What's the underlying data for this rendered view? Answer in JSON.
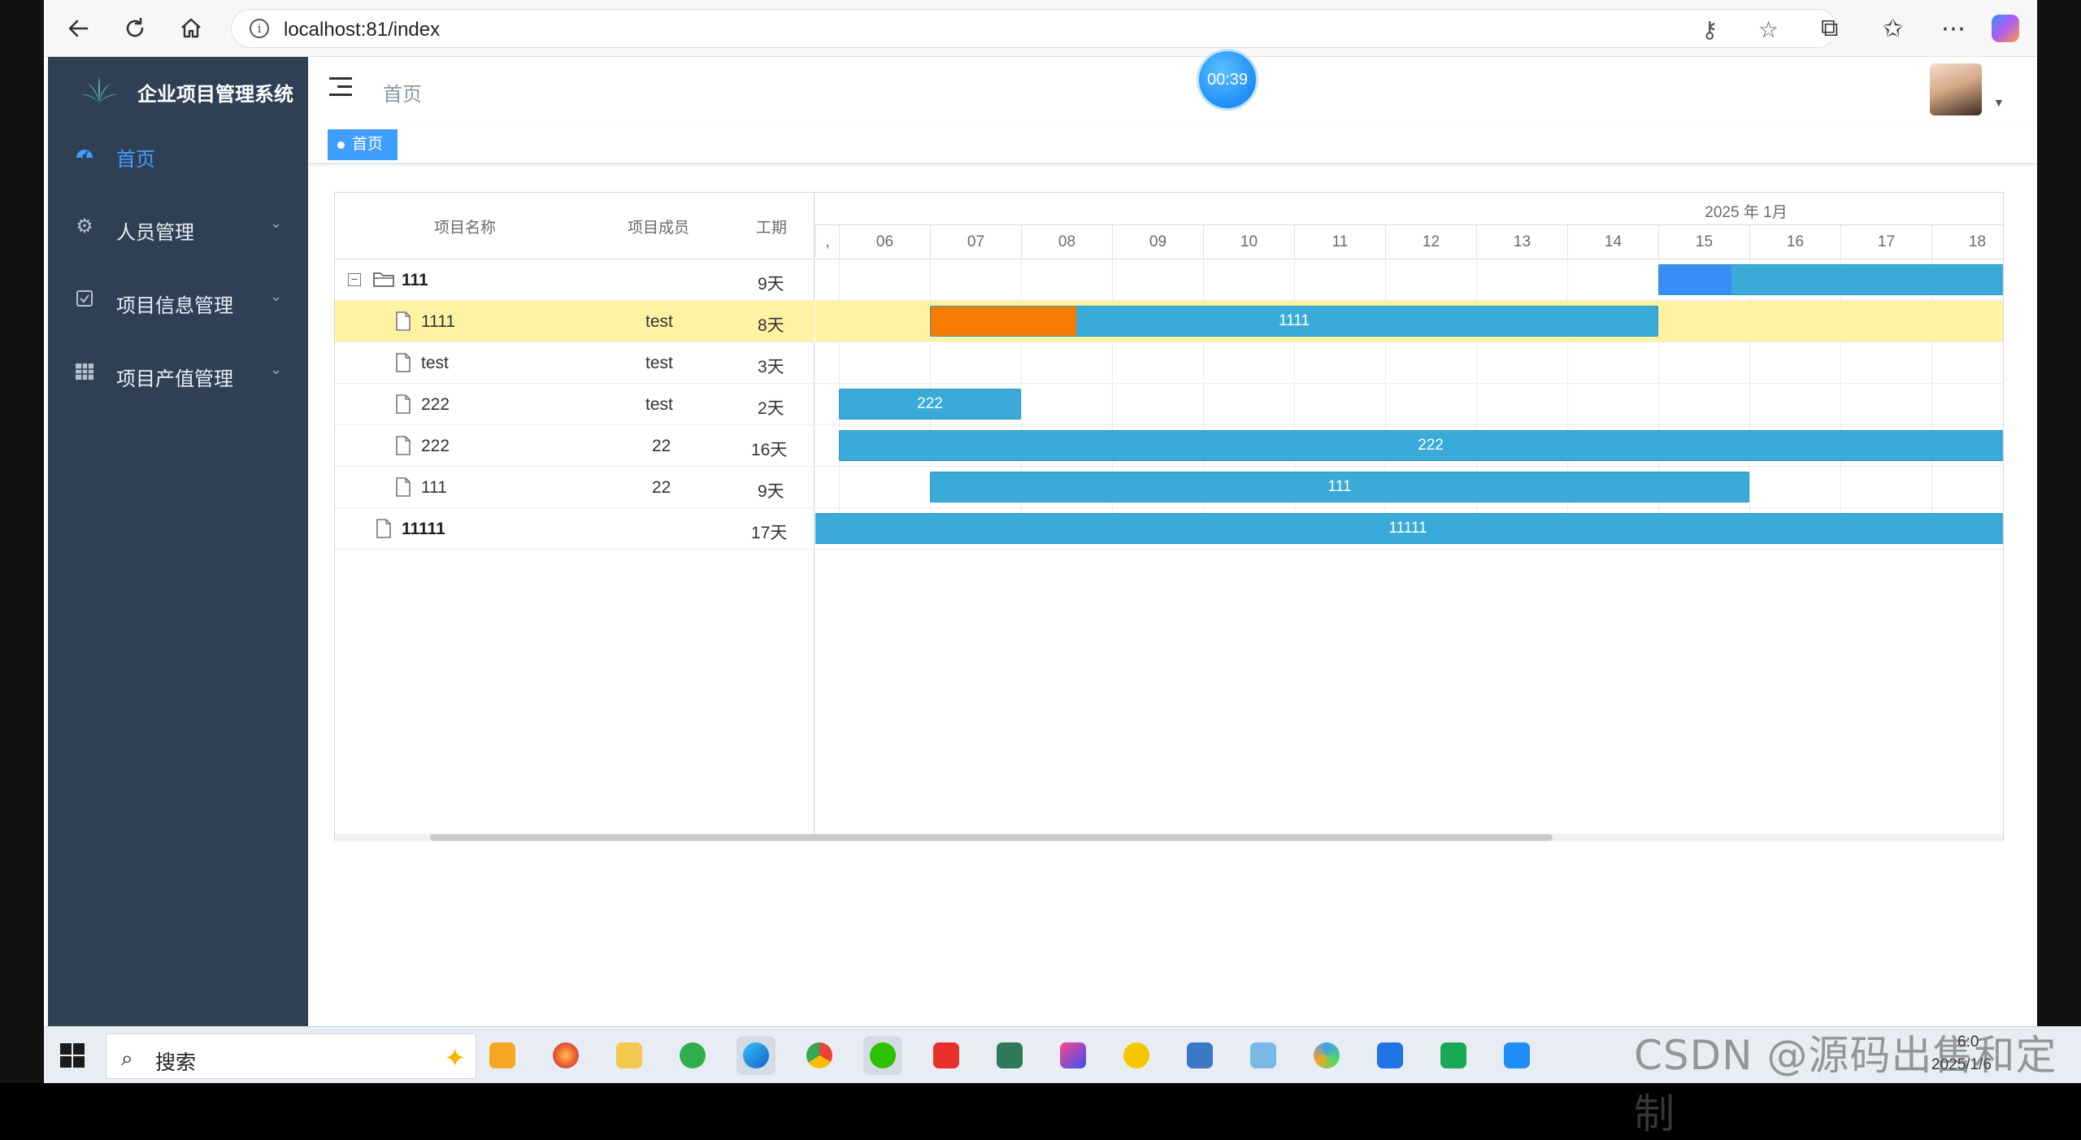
{
  "browser": {
    "url": "localhost:81/index"
  },
  "app": {
    "title": "企业项目管理系统",
    "menu": [
      {
        "label": "首页",
        "icon": "dashboard-icon",
        "active": true
      },
      {
        "label": "人员管理",
        "icon": "gear-icon",
        "active": false
      },
      {
        "label": "项目信息管理",
        "icon": "checkbox-icon",
        "active": false
      },
      {
        "label": "项目产值管理",
        "icon": "table-icon",
        "active": false
      }
    ],
    "breadcrumb": "首页",
    "timer": "00:39",
    "tag": "首页"
  },
  "gantt": {
    "columns": [
      "项目名称",
      "项目成员",
      "工期"
    ],
    "month_label": "2025 年 1月",
    "days": [
      "06",
      "07",
      "08",
      "09",
      "10",
      "11",
      "12",
      "13",
      "14",
      "15",
      "16",
      "17",
      "18"
    ],
    "rows": [
      {
        "name": "111",
        "member": "",
        "duration": "9天",
        "level": 0,
        "type": "folder",
        "expanded": true,
        "selected": false,
        "bar_label": ""
      },
      {
        "name": "1111",
        "member": "test",
        "duration": "8天",
        "level": 1,
        "type": "file",
        "selected": true,
        "bar_label": "1111"
      },
      {
        "name": "test",
        "member": "test",
        "duration": "3天",
        "level": 1,
        "type": "file",
        "selected": false,
        "bar_label": ""
      },
      {
        "name": "222",
        "member": "test",
        "duration": "2天",
        "level": 1,
        "type": "file",
        "selected": false,
        "bar_label": "222"
      },
      {
        "name": "222",
        "member": "22",
        "duration": "16天",
        "level": 1,
        "type": "file",
        "selected": false,
        "bar_label": "222"
      },
      {
        "name": "111",
        "member": "22",
        "duration": "9天",
        "level": 1,
        "type": "file",
        "selected": false,
        "bar_label": "111"
      },
      {
        "name": "11111",
        "member": "",
        "duration": "17天",
        "level": 0,
        "type": "file",
        "selected": false,
        "bar_label": "11111"
      }
    ],
    "bars": [
      {
        "row": 0,
        "start_day": 15,
        "end_day": 19,
        "progress": 0.2,
        "progress_color": "#3a8ef7",
        "label": ""
      },
      {
        "row": 1,
        "start_day": 7,
        "end_day": 15,
        "progress": 0.2,
        "progress_color": "#f57c00",
        "label": "1111"
      },
      {
        "row": 3,
        "start_day": 6,
        "end_day": 8,
        "progress": 0,
        "progress_color": "",
        "label": "222"
      },
      {
        "row": 4,
        "start_day": 6,
        "end_day": 19,
        "progress": 0,
        "progress_color": "",
        "label": "222"
      },
      {
        "row": 5,
        "start_day": 7,
        "end_day": 16,
        "progress": 0,
        "progress_color": "",
        "label": "111"
      },
      {
        "row": 6,
        "start_day": 5.5,
        "end_day": 19,
        "progress": 0,
        "progress_color": "",
        "label": "11111"
      }
    ]
  },
  "taskbar": {
    "search_placeholder": "搜索",
    "date": "2025/1/6",
    "time_partial": "6:0",
    "watermark": "CSDN @源码出售和定制"
  }
}
